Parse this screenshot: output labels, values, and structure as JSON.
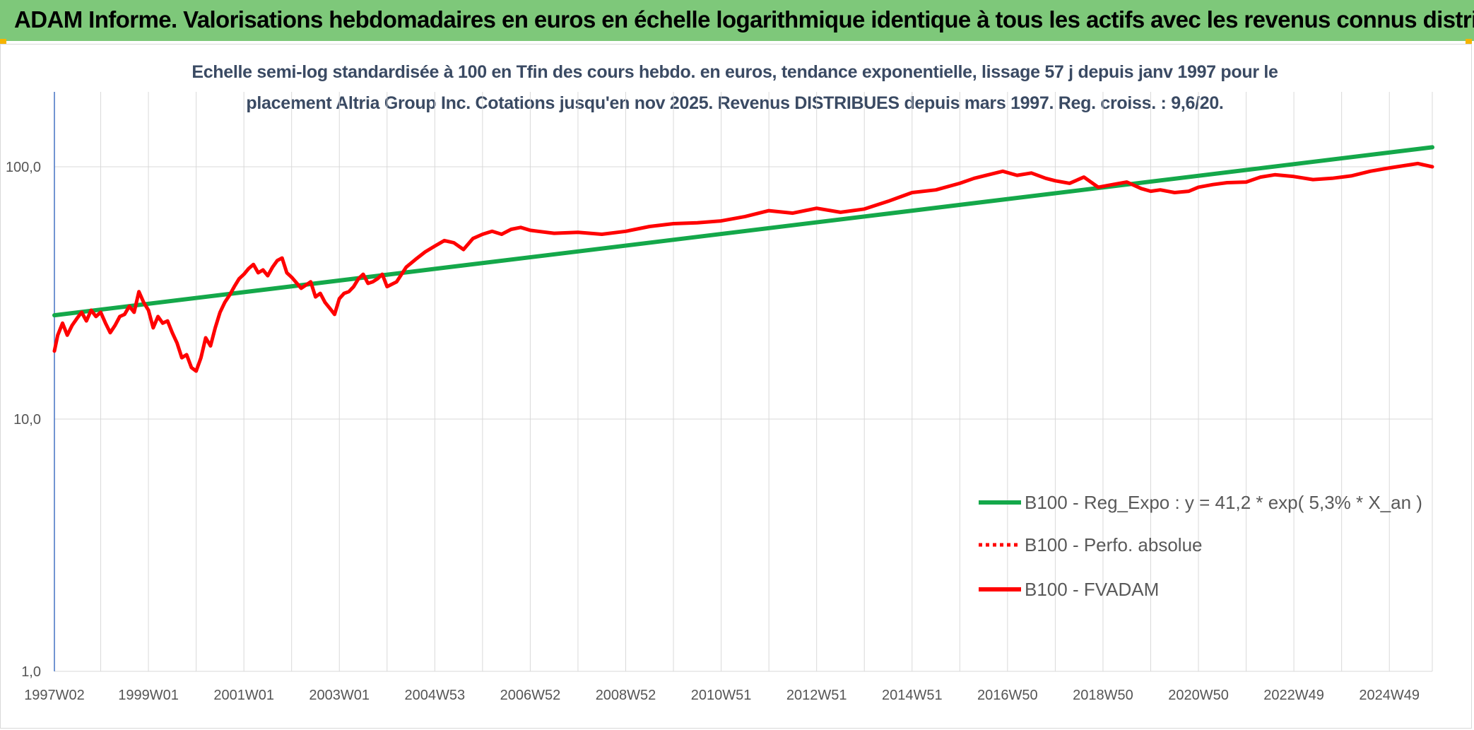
{
  "header": {
    "title": "ADAM Informe. Valorisations hebdomadaires en euros en échelle logarithmique identique à tous les actifs avec les revenus connus distribués"
  },
  "colors": {
    "header_band": "#7ec87a",
    "trend": "#14a84a",
    "price": "#ff0000"
  },
  "chart_data": {
    "type": "line",
    "title": "Echelle semi-log standardisée à 100 en Tfin des cours hebdo. en euros, tendance exponentielle, lissage 57 j depuis janv 1997 pour le placement Altria Group Inc. Cotations jusqu'en nov 2025. Revenus DISTRIBUES depuis mars 1997. Reg. croiss. : 9,6/20.",
    "title_lines": [
      "Echelle semi-log standardisée à 100 en Tfin des cours hebdo. en euros, tendance exponentielle, lissage 57 j depuis janv 1997 pour le",
      "placement Altria Group Inc. Cotations jusqu'en nov 2025. Revenus DISTRIBUES depuis mars 1997. Reg. croiss. : 9,6/20."
    ],
    "y_scale": "log",
    "ylim": [
      1,
      200
    ],
    "xlim": [
      1997.03,
      2025.9
    ],
    "y_ticks": [
      {
        "v": 100,
        "label": "100,0"
      },
      {
        "v": 10,
        "label": "10,0"
      },
      {
        "v": 1,
        "label": "1,0"
      }
    ],
    "x_ticks": [
      {
        "v": 1997.03,
        "label": "1997W02"
      },
      {
        "v": 1999.0,
        "label": "1999W01"
      },
      {
        "v": 2001.0,
        "label": "2001W01"
      },
      {
        "v": 2003.0,
        "label": "2003W01"
      },
      {
        "v": 2005.0,
        "label": "2004W53"
      },
      {
        "v": 2007.0,
        "label": "2006W52"
      },
      {
        "v": 2009.0,
        "label": "2008W52"
      },
      {
        "v": 2011.0,
        "label": "2010W51"
      },
      {
        "v": 2013.0,
        "label": "2012W51"
      },
      {
        "v": 2015.0,
        "label": "2014W51"
      },
      {
        "v": 2017.0,
        "label": "2016W50"
      },
      {
        "v": 2019.0,
        "label": "2018W50"
      },
      {
        "v": 2021.0,
        "label": "2020W50"
      },
      {
        "v": 2023.0,
        "label": "2022W49"
      },
      {
        "v": 2025.0,
        "label": "2024W49"
      }
    ],
    "x_gridlines": [
      1998.0,
      1999.0,
      2000.0,
      2001.0,
      2002.0,
      2003.0,
      2004.0,
      2005.0,
      2006.0,
      2007.0,
      2008.0,
      2009.0,
      2010.0,
      2011.0,
      2012.0,
      2013.0,
      2014.0,
      2015.0,
      2016.0,
      2017.0,
      2018.0,
      2019.0,
      2020.0,
      2021.0,
      2022.0,
      2023.0,
      2024.0,
      2025.0,
      2025.9
    ],
    "grid": true,
    "legend_position": "bottom-right",
    "series": [
      {
        "name": "B100 - Reg_Expo : y = 41,2 * exp( 5,3% *  X_an )",
        "style": "solid",
        "color": "#14a84a",
        "x": [
          1997.03,
          2025.9
        ],
        "y": [
          25.8,
          119.5
        ]
      },
      {
        "name": "B100 - Perfo. absolue",
        "style": "dotted",
        "color": "#ff0000",
        "x": [],
        "y": []
      },
      {
        "name": "B100 - FVADAM",
        "style": "solid",
        "color": "#ff0000",
        "x": [
          1997.03,
          1997.1,
          1997.2,
          1997.3,
          1997.4,
          1997.5,
          1997.6,
          1997.7,
          1997.8,
          1997.9,
          1998.0,
          1998.1,
          1998.2,
          1998.3,
          1998.4,
          1998.5,
          1998.6,
          1998.7,
          1998.8,
          1998.9,
          1999.0,
          1999.1,
          1999.2,
          1999.3,
          1999.4,
          1999.5,
          1999.6,
          1999.7,
          1999.8,
          1999.9,
          2000.0,
          2000.1,
          2000.2,
          2000.3,
          2000.4,
          2000.5,
          2000.6,
          2000.7,
          2000.8,
          2000.9,
          2001.0,
          2001.1,
          2001.2,
          2001.3,
          2001.4,
          2001.5,
          2001.6,
          2001.7,
          2001.8,
          2001.9,
          2002.0,
          2002.2,
          2002.4,
          2002.5,
          2002.6,
          2002.7,
          2002.8,
          2002.9,
          2003.0,
          2003.1,
          2003.2,
          2003.3,
          2003.4,
          2003.5,
          2003.6,
          2003.7,
          2003.8,
          2003.9,
          2004.0,
          2004.2,
          2004.4,
          2004.6,
          2004.8,
          2005.0,
          2005.2,
          2005.4,
          2005.6,
          2005.8,
          2006.0,
          2006.2,
          2006.4,
          2006.6,
          2006.8,
          2007.0,
          2007.5,
          2008.0,
          2008.5,
          2009.0,
          2009.5,
          2010.0,
          2010.5,
          2011.0,
          2011.5,
          2012.0,
          2012.5,
          2013.0,
          2013.5,
          2014.0,
          2014.5,
          2015.0,
          2015.5,
          2016.0,
          2016.3,
          2016.6,
          2016.9,
          2017.2,
          2017.5,
          2017.8,
          2018.0,
          2018.3,
          2018.6,
          2018.9,
          2019.2,
          2019.5,
          2019.8,
          2020.0,
          2020.2,
          2020.5,
          2020.8,
          2021.0,
          2021.3,
          2021.6,
          2022.0,
          2022.3,
          2022.6,
          2023.0,
          2023.4,
          2023.8,
          2024.2,
          2024.6,
          2025.0,
          2025.3,
          2025.6,
          2025.9
        ],
        "y": [
          18.6,
          21.5,
          24.0,
          21.5,
          23.5,
          25.0,
          26.5,
          24.5,
          27.0,
          25.5,
          26.5,
          24.0,
          22.0,
          23.5,
          25.5,
          26.0,
          28.0,
          26.5,
          32.0,
          29.0,
          27.0,
          23.0,
          25.5,
          24.0,
          24.5,
          22.0,
          20.0,
          17.5,
          18.0,
          16.0,
          15.5,
          17.5,
          21.0,
          19.5,
          23.0,
          26.5,
          29.0,
          31.0,
          33.5,
          36.0,
          37.5,
          39.5,
          41.0,
          38.0,
          39.0,
          37.0,
          40.0,
          42.5,
          43.5,
          38.0,
          36.5,
          33.0,
          35.0,
          30.5,
          31.5,
          29.0,
          27.5,
          26.0,
          30.0,
          31.5,
          32.0,
          33.5,
          36.0,
          37.5,
          34.5,
          35.0,
          36.0,
          37.5,
          33.5,
          35.0,
          40.0,
          43.0,
          46.0,
          48.5,
          51.0,
          50.0,
          47.0,
          52.0,
          54.0,
          55.5,
          54.0,
          56.5,
          57.5,
          56.0,
          54.5,
          55.0,
          54.0,
          55.5,
          58.0,
          59.5,
          60.0,
          61.0,
          63.5,
          67.0,
          65.5,
          68.5,
          66.0,
          68.0,
          73.0,
          79.0,
          81.0,
          86.0,
          90.0,
          93.0,
          96.0,
          92.5,
          94.5,
          90.0,
          88.0,
          86.0,
          91.0,
          83.0,
          85.0,
          87.0,
          82.0,
          80.0,
          81.0,
          79.0,
          80.0,
          83.0,
          85.0,
          86.5,
          87.0,
          91.0,
          93.0,
          91.5,
          89.0,
          90.0,
          92.0,
          96.0,
          99.0,
          101.0,
          103.0,
          100.0
        ]
      }
    ]
  }
}
